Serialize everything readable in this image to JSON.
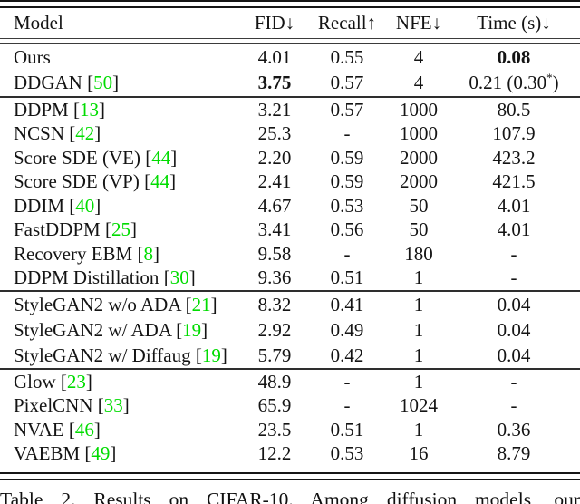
{
  "table": {
    "columns": [
      {
        "label": "Model"
      },
      {
        "label": "FID↓"
      },
      {
        "label": "Recall↑"
      },
      {
        "label": "NFE↓"
      },
      {
        "label": "Time (s)↓"
      }
    ],
    "sections": [
      {
        "rows": [
          {
            "model": "Ours",
            "cite": null,
            "fid": "4.01",
            "recall": "0.55",
            "nfe": "4",
            "time": "0.08",
            "bold": [
              "time"
            ]
          },
          {
            "model": "DDGAN",
            "cite": "50",
            "fid": "3.75",
            "recall": "0.57",
            "nfe": "4",
            "time": "0.21 (0.30*)",
            "bold": [
              "fid"
            ]
          }
        ]
      },
      {
        "rows": [
          {
            "model": "DDPM",
            "cite": "13",
            "fid": "3.21",
            "recall": "0.57",
            "nfe": "1000",
            "time": "80.5",
            "bold": []
          },
          {
            "model": "NCSN",
            "cite": "42",
            "fid": "25.3",
            "recall": "-",
            "nfe": "1000",
            "time": "107.9",
            "bold": []
          },
          {
            "model": "Score SDE (VE)",
            "cite": "44",
            "fid": "2.20",
            "recall": "0.59",
            "nfe": "2000",
            "time": "423.2",
            "bold": []
          },
          {
            "model": "Score SDE (VP)",
            "cite": "44",
            "fid": "2.41",
            "recall": "0.59",
            "nfe": "2000",
            "time": "421.5",
            "bold": []
          },
          {
            "model": "DDIM",
            "cite": "40",
            "fid": "4.67",
            "recall": "0.53",
            "nfe": "50",
            "time": "4.01",
            "bold": []
          },
          {
            "model": "FastDDPM",
            "cite": "25",
            "fid": "3.41",
            "recall": "0.56",
            "nfe": "50",
            "time": "4.01",
            "bold": []
          },
          {
            "model": "Recovery EBM",
            "cite": "8",
            "fid": "9.58",
            "recall": "-",
            "nfe": "180",
            "time": "-",
            "bold": []
          },
          {
            "model": "DDPM Distillation",
            "cite": "30",
            "fid": "9.36",
            "recall": "0.51",
            "nfe": "1",
            "time": "-",
            "bold": []
          }
        ]
      },
      {
        "rows": [
          {
            "model": "StyleGAN2 w/o ADA",
            "cite": "21",
            "fid": "8.32",
            "recall": "0.41",
            "nfe": "1",
            "time": "0.04",
            "bold": []
          },
          {
            "model": "StyleGAN2 w/ ADA",
            "cite": "19",
            "fid": "2.92",
            "recall": "0.49",
            "nfe": "1",
            "time": "0.04",
            "bold": []
          },
          {
            "model": "StyleGAN2 w/ Diffaug",
            "cite": "19",
            "fid": "5.79",
            "recall": "0.42",
            "nfe": "1",
            "time": "0.04",
            "bold": []
          }
        ]
      },
      {
        "rows": [
          {
            "model": "Glow",
            "cite": "23",
            "fid": "48.9",
            "recall": "-",
            "nfe": "1",
            "time": "-",
            "bold": []
          },
          {
            "model": "PixelCNN",
            "cite": "33",
            "fid": "65.9",
            "recall": "-",
            "nfe": "1024",
            "time": "-",
            "bold": []
          },
          {
            "model": "NVAE",
            "cite": "46",
            "fid": "23.5",
            "recall": "0.51",
            "nfe": "1",
            "time": "0.36",
            "bold": []
          },
          {
            "model": "VAEBM",
            "cite": "49",
            "fid": "12.2",
            "recall": "0.53",
            "nfe": "16",
            "time": "8.79",
            "bold": []
          }
        ]
      }
    ]
  },
  "caption": "Table 2.  Results on CIFAR-10.  Among diffusion models, our",
  "colors": {
    "citation_green": "#00dc00",
    "text": "#141414",
    "rule": "#161616"
  }
}
